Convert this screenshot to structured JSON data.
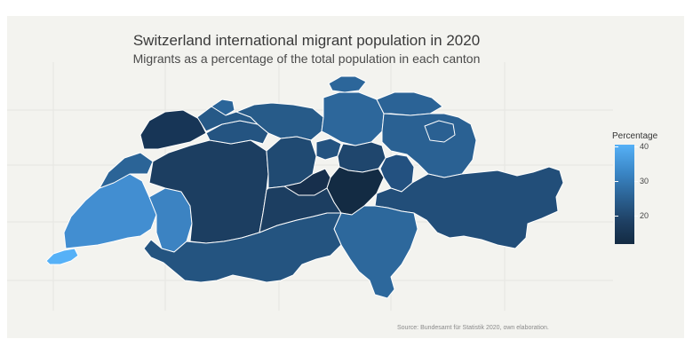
{
  "title": "Switzerland international migrant population in 2020",
  "subtitle": "Migrants as a percentage of the total population in each canton",
  "caption": "Source: Bundesamt für Statistik 2020, own elaboration.",
  "legend": {
    "title": "Percentage",
    "ticks": [
      {
        "label": "40",
        "value": 40
      },
      {
        "label": "30",
        "value": 30
      },
      {
        "label": "20",
        "value": 20
      }
    ],
    "range": [
      11,
      41
    ],
    "colors": {
      "low": "#132b43",
      "high": "#56b1f7"
    }
  },
  "chart_data": {
    "type": "choropleth",
    "variable": "Percentage",
    "scale": {
      "min": 11,
      "max": 41,
      "low_color": "#132b43",
      "high_color": "#56b1f7"
    }
  }
}
